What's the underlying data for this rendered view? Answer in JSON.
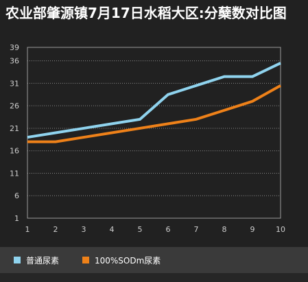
{
  "chart_data": {
    "type": "line",
    "title": "农业部肇源镇7月17日水稻大区:分蘖数对比图",
    "x": [
      1,
      2,
      3,
      4,
      5,
      6,
      7,
      8,
      9,
      10
    ],
    "series": [
      {
        "name": "普通尿素",
        "color": "#8fd3ee",
        "values": [
          19,
          20,
          21,
          22,
          23,
          28.5,
          30.5,
          32.5,
          32.5,
          35.5
        ]
      },
      {
        "name": "100%SODm尿素",
        "color": "#ee8119",
        "values": [
          18,
          18,
          19,
          20,
          21,
          22,
          23,
          25,
          27,
          30.5
        ]
      }
    ],
    "y_ticks": [
      1,
      6,
      11,
      16,
      21,
      26,
      31,
      36,
      39
    ],
    "ylim": [
      1,
      39
    ],
    "xlim": [
      1,
      10
    ],
    "grid": "horizontal dotted",
    "legend_position": "bottom-left"
  }
}
